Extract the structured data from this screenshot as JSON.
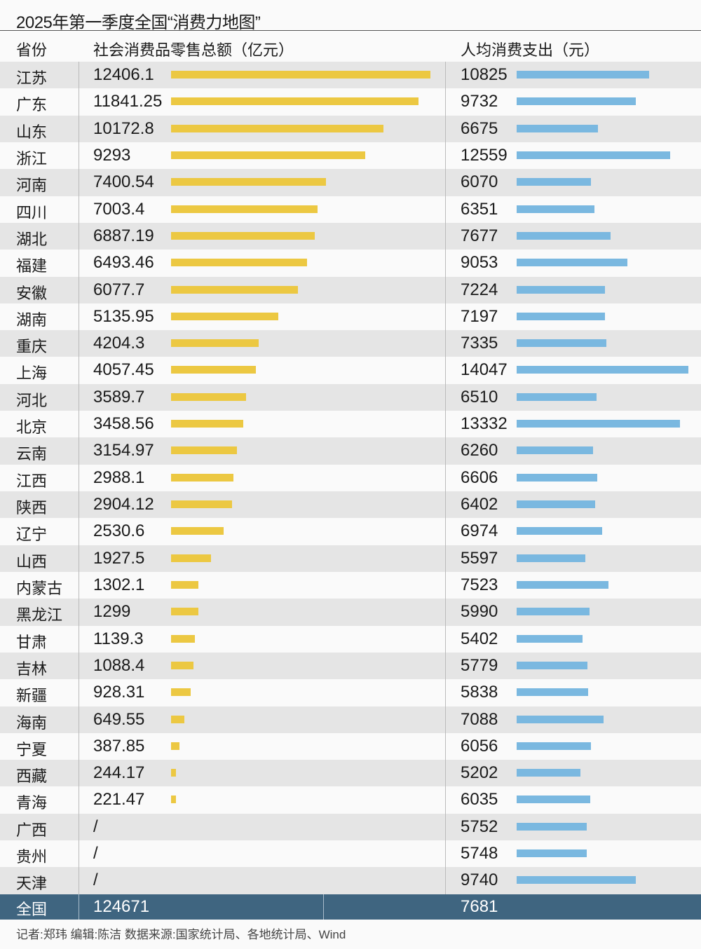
{
  "title": "2025年第一季度全国“消费力地图”",
  "chart_data": {
    "type": "table",
    "headers": {
      "province": "省份",
      "retail": "社会消费品零售总额（亿元）",
      "per_capita": "人均消费支出（元）"
    },
    "colors": {
      "retail": "#ecc842",
      "per_capita": "#7ab8e0",
      "total_bg": "#3f6580"
    },
    "rows": [
      {
        "province": "江苏",
        "retail": "12406.1",
        "per_capita": "10825"
      },
      {
        "province": "广东",
        "retail": "11841.25",
        "per_capita": "9732"
      },
      {
        "province": "山东",
        "retail": "10172.8",
        "per_capita": "6675"
      },
      {
        "province": "浙江",
        "retail": "9293",
        "per_capita": "12559"
      },
      {
        "province": "河南",
        "retail": "7400.54",
        "per_capita": "6070"
      },
      {
        "province": "四川",
        "retail": "7003.4",
        "per_capita": "6351"
      },
      {
        "province": "湖北",
        "retail": "6887.19",
        "per_capita": "7677"
      },
      {
        "province": "福建",
        "retail": "6493.46",
        "per_capita": "9053"
      },
      {
        "province": "安徽",
        "retail": "6077.7",
        "per_capita": "7224"
      },
      {
        "province": "湖南",
        "retail": "5135.95",
        "per_capita": "7197"
      },
      {
        "province": "重庆",
        "retail": "4204.3",
        "per_capita": "7335"
      },
      {
        "province": "上海",
        "retail": "4057.45",
        "per_capita": "14047"
      },
      {
        "province": "河北",
        "retail": "3589.7",
        "per_capita": "6510"
      },
      {
        "province": "北京",
        "retail": "3458.56",
        "per_capita": "13332"
      },
      {
        "province": "云南",
        "retail": "3154.97",
        "per_capita": "6260"
      },
      {
        "province": "江西",
        "retail": "2988.1",
        "per_capita": "6606"
      },
      {
        "province": "陕西",
        "retail": "2904.12",
        "per_capita": "6402"
      },
      {
        "province": "辽宁",
        "retail": "2530.6",
        "per_capita": "6974"
      },
      {
        "province": "山西",
        "retail": "1927.5",
        "per_capita": "5597"
      },
      {
        "province": "内蒙古",
        "retail": "1302.1",
        "per_capita": "7523"
      },
      {
        "province": "黑龙江",
        "retail": "1299",
        "per_capita": "5990"
      },
      {
        "province": "甘肃",
        "retail": "1139.3",
        "per_capita": "5402"
      },
      {
        "province": "吉林",
        "retail": "1088.4",
        "per_capita": "5779"
      },
      {
        "province": "新疆",
        "retail": "928.31",
        "per_capita": "5838"
      },
      {
        "province": "海南",
        "retail": "649.55",
        "per_capita": "7088"
      },
      {
        "province": "宁夏",
        "retail": "387.85",
        "per_capita": "6056"
      },
      {
        "province": "西藏",
        "retail": "244.17",
        "per_capita": "5202"
      },
      {
        "province": "青海",
        "retail": "221.47",
        "per_capita": "6035"
      },
      {
        "province": "广西",
        "retail": "/",
        "per_capita": "5752"
      },
      {
        "province": "贵州",
        "retail": "/",
        "per_capita": "5748"
      },
      {
        "province": "天津",
        "retail": "/",
        "per_capita": "9740"
      }
    ],
    "total": {
      "province": "全国",
      "retail": "124671",
      "per_capita": "7681"
    }
  },
  "footer": "记者:郑玮  编辑:陈洁  数据来源:国家统计局、各地统计局、Wind"
}
